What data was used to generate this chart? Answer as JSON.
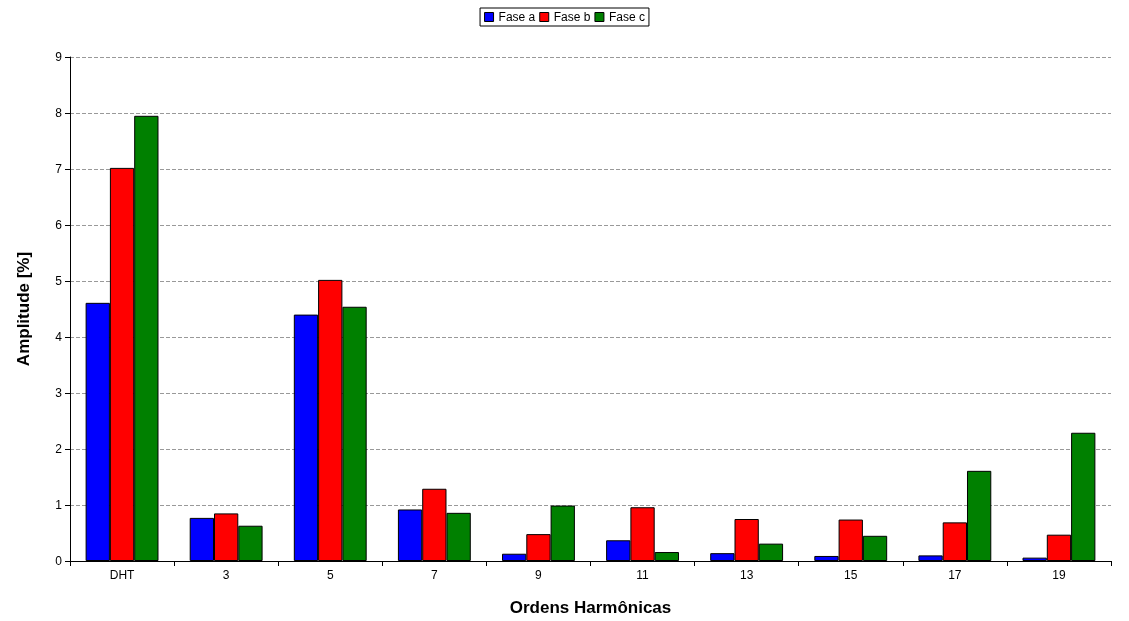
{
  "chart_data": {
    "type": "bar",
    "xlabel": "Ordens Harmônicas",
    "ylabel": "Amplitude [%]",
    "categories": [
      "DHT",
      "3",
      "5",
      "7",
      "9",
      "11",
      "13",
      "15",
      "17",
      "19"
    ],
    "series": [
      {
        "name": "Fase a",
        "color": "#0000ff",
        "values": [
          4.61,
          0.77,
          4.4,
          0.92,
          0.13,
          0.37,
          0.14,
          0.09,
          0.1,
          0.06
        ]
      },
      {
        "name": "Fase b",
        "color": "#ff0000",
        "values": [
          7.02,
          0.85,
          5.02,
          1.29,
          0.48,
          0.96,
          0.75,
          0.74,
          0.69,
          0.47
        ]
      },
      {
        "name": "Fase c",
        "color": "#008000",
        "values": [
          7.95,
          0.63,
          4.54,
          0.86,
          0.99,
          0.16,
          0.31,
          0.45,
          1.61,
          2.29
        ]
      }
    ],
    "ylim": [
      0,
      9
    ],
    "yticks": [
      0,
      1,
      2,
      3,
      4,
      5,
      6,
      7,
      8,
      9
    ],
    "grid": "y",
    "legend": "top"
  }
}
